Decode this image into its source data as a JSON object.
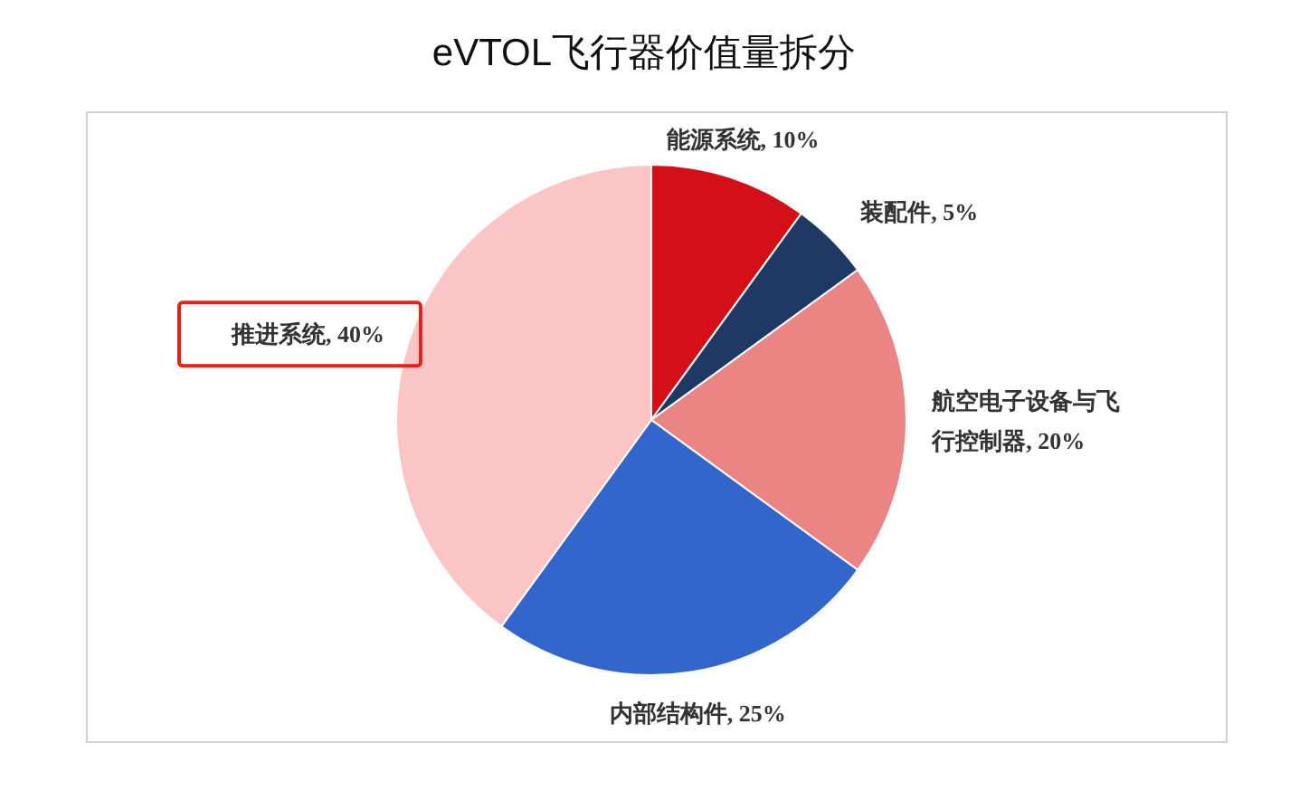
{
  "chart_data": {
    "type": "pie",
    "title": "eVTOL飞行器价值量拆分",
    "categories": [
      "能源系统",
      "装配件",
      "航空电子设备与飞行控制器",
      "内部结构件",
      "推进系统"
    ],
    "values": [
      10,
      5,
      20,
      25,
      40
    ],
    "value_labels": [
      "10%",
      "5%",
      "20%",
      "25%",
      "40%"
    ],
    "colors": [
      "#d40f17",
      "#1f3864",
      "#eb8583",
      "#3366cc",
      "#fbc5c5"
    ]
  }
}
